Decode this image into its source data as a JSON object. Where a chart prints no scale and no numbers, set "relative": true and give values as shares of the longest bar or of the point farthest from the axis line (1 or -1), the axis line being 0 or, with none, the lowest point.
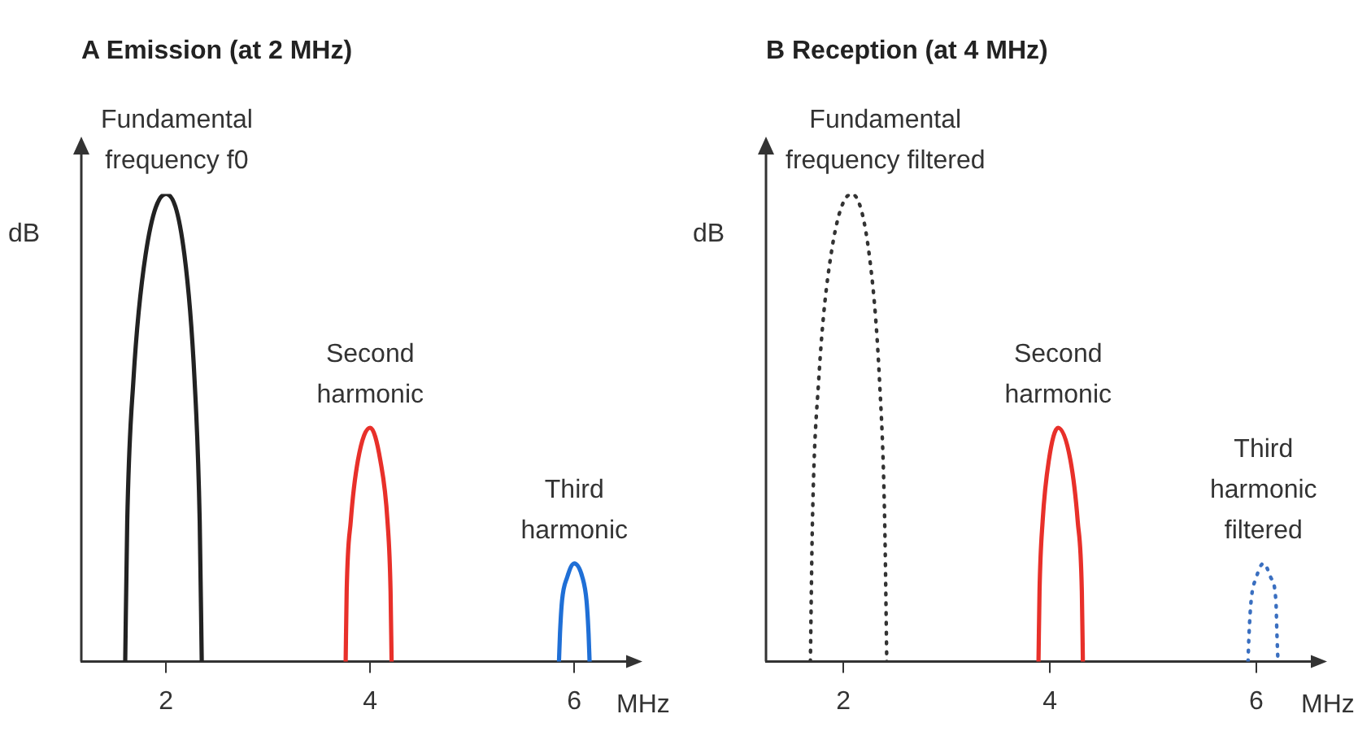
{
  "chart_data": [
    {
      "type": "line",
      "title": "A Emission (at 2 MHz)",
      "xlabel": "MHz",
      "ylabel": "dB",
      "relative": true,
      "marker": "none",
      "grid": false,
      "legend": false,
      "xlim": [
        1.17,
        6.54
      ],
      "xticks": [
        2,
        4,
        6
      ],
      "series": [
        {
          "color": "#222222",
          "x": [
            1.6,
            1.62,
            1.68,
            1.8,
            2.0,
            2.18,
            2.28,
            2.33,
            2.35
          ],
          "values": [
            0,
            0.3,
            0.6,
            0.87,
            1,
            0.87,
            0.6,
            0.3,
            0
          ]
        },
        {
          "color": "#e8302a",
          "x": [
            3.76,
            3.77,
            3.81,
            3.88,
            4.0,
            4.1,
            4.17,
            4.2,
            4.21
          ],
          "values": [
            0,
            0.15,
            0.3,
            0.43,
            0.5,
            0.43,
            0.3,
            0.15,
            0
          ]
        },
        {
          "color": "#1f6fd6",
          "x": [
            5.85,
            5.86,
            5.88,
            5.93,
            6.0,
            6.08,
            6.12,
            6.14,
            6.15
          ],
          "values": [
            0,
            0.06,
            0.13,
            0.18,
            0.21,
            0.18,
            0.13,
            0.06,
            0
          ]
        }
      ],
      "annotations": [
        {
          "text": "Fundamental\nfrequency f0",
          "x": 2.0,
          "y": 1
        },
        {
          "text": "Second\nharmonic",
          "x": 4.0,
          "y": 0.5
        },
        {
          "text": "Third\nharmonic",
          "x": 6.0,
          "y": 0.21
        }
      ]
    },
    {
      "type": "line",
      "title": "B Reception (at 4 MHz)",
      "xlabel": "MHz",
      "ylabel": "dB",
      "relative": true,
      "marker": "none",
      "grid": false,
      "legend": false,
      "xlim": [
        1.25,
        6.56
      ],
      "xticks": [
        2,
        4,
        6
      ],
      "series": [
        {
          "color": "#333333",
          "line_style": "dotted",
          "x": [
            1.68,
            1.7,
            1.76,
            1.88,
            2.08,
            2.25,
            2.35,
            2.4,
            2.42
          ],
          "values": [
            0,
            0.3,
            0.6,
            0.87,
            1,
            0.87,
            0.6,
            0.3,
            0
          ]
        },
        {
          "color": "#e8302a",
          "x": [
            3.89,
            3.9,
            3.93,
            3.99,
            4.08,
            4.2,
            4.27,
            4.31,
            4.32
          ],
          "values": [
            0,
            0.15,
            0.3,
            0.43,
            0.5,
            0.43,
            0.3,
            0.15,
            0
          ]
        },
        {
          "color": "#3a6fc0",
          "line_style": "dotted",
          "x": [
            5.92,
            5.93,
            5.95,
            6.0,
            6.07,
            6.14,
            6.19,
            6.2,
            6.21
          ],
          "values": [
            0,
            0.06,
            0.13,
            0.18,
            0.21,
            0.18,
            0.13,
            0.06,
            0
          ]
        }
      ],
      "annotations": [
        {
          "text": "Fundamental\nfrequency filtered",
          "x": 2.08,
          "y": 1
        },
        {
          "text": "Second\nharmonic",
          "x": 4.08,
          "y": 0.5
        },
        {
          "text": "Third\nharmonic\nfiltered",
          "x": 6.07,
          "y": 0.21
        }
      ]
    }
  ]
}
